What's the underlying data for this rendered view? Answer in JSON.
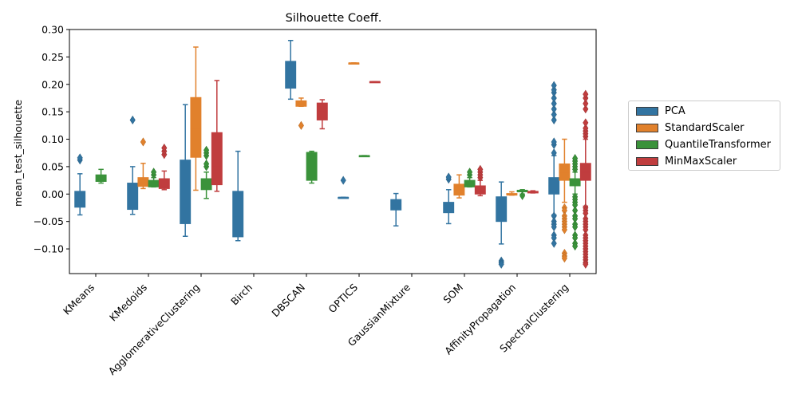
{
  "chart_data": {
    "type": "box",
    "title": "Silhouette Coeff.",
    "xlabel": "",
    "ylabel": "mean_test_silhouette",
    "ylim": [
      -0.145,
      0.3
    ],
    "yticks": [
      -0.1,
      -0.05,
      0.0,
      0.05,
      0.1,
      0.15,
      0.2,
      0.25,
      0.3
    ],
    "ytick_labels": [
      "−0.10",
      "−0.05",
      "0.00",
      "0.05",
      "0.10",
      "0.15",
      "0.20",
      "0.25",
      "0.30"
    ],
    "categories": [
      "KMeans",
      "KMedoids",
      "AgglomerativeClustering",
      "Birch",
      "DBSCAN",
      "OPTICS",
      "GaussianMixture",
      "SOM",
      "AffinityPropagation",
      "SpectralClustering"
    ],
    "legend_position": "right",
    "grid": false,
    "series": [
      {
        "name": "PCA",
        "color": "#3274a1",
        "boxes": [
          {
            "category": "KMeans",
            "whislo": -0.038,
            "q1": -0.024,
            "med": -0.01,
            "q3": 0.005,
            "whishi": 0.037,
            "fliers": [
              0.062,
              0.066
            ]
          },
          {
            "category": "KMedoids",
            "whislo": -0.037,
            "q1": -0.028,
            "med": 0.0,
            "q3": 0.02,
            "whishi": 0.05,
            "fliers": [
              0.135
            ]
          },
          {
            "category": "AgglomerativeClustering",
            "whislo": -0.077,
            "q1": -0.054,
            "med": 0.0,
            "q3": 0.062,
            "whishi": 0.163,
            "fliers": []
          },
          {
            "category": "Birch",
            "whislo": -0.085,
            "q1": -0.078,
            "med": -0.04,
            "q3": 0.005,
            "whishi": 0.078,
            "fliers": []
          },
          {
            "category": "DBSCAN",
            "whislo": 0.173,
            "q1": 0.193,
            "med": 0.21,
            "q3": 0.242,
            "whishi": 0.28,
            "fliers": []
          },
          {
            "category": "OPTICS",
            "whislo": -0.006,
            "q1": -0.006,
            "med": -0.006,
            "q3": -0.006,
            "whishi": -0.006,
            "fliers": [
              0.025
            ]
          },
          {
            "category": "GaussianMixture",
            "whislo": -0.058,
            "q1": -0.029,
            "med": -0.02,
            "q3": -0.01,
            "whishi": 0.001,
            "fliers": []
          },
          {
            "category": "SOM",
            "whislo": -0.054,
            "q1": -0.034,
            "med": -0.02,
            "q3": -0.015,
            "whishi": 0.008,
            "fliers": [
              0.027,
              0.031
            ]
          },
          {
            "category": "AffinityPropagation",
            "whislo": -0.091,
            "q1": -0.05,
            "med": -0.02,
            "q3": -0.005,
            "whishi": 0.022,
            "fliers": [
              -0.122,
              -0.125,
              -0.128
            ]
          },
          {
            "category": "SpectralClustering",
            "whislo": -0.038,
            "q1": 0.0,
            "med": 0.015,
            "q3": 0.03,
            "whishi": 0.07,
            "fliers": [
              0.075,
              0.09,
              0.095,
              0.135,
              0.145,
              0.155,
              0.165,
              0.175,
              0.185,
              0.19,
              0.198,
              -0.04,
              -0.05,
              -0.055,
              -0.06,
              -0.075,
              -0.08,
              -0.09
            ]
          }
        ]
      },
      {
        "name": "StandardScaler",
        "color": "#e1812c",
        "boxes": [
          {
            "category": "KMedoids",
            "whislo": 0.01,
            "q1": 0.014,
            "med": 0.02,
            "q3": 0.03,
            "whishi": 0.056,
            "fliers": [
              0.095
            ]
          },
          {
            "category": "AgglomerativeClustering",
            "whislo": 0.007,
            "q1": 0.067,
            "med": 0.12,
            "q3": 0.176,
            "whishi": 0.268,
            "fliers": []
          },
          {
            "category": "DBSCAN",
            "whislo": 0.16,
            "q1": 0.16,
            "med": 0.163,
            "q3": 0.17,
            "whishi": 0.175,
            "fliers": [
              0.125
            ]
          },
          {
            "category": "OPTICS",
            "whislo": 0.239,
            "q1": 0.239,
            "med": 0.239,
            "q3": 0.239,
            "whishi": 0.239,
            "fliers": []
          },
          {
            "category": "SOM",
            "whislo": -0.007,
            "q1": -0.002,
            "med": 0.008,
            "q3": 0.018,
            "whishi": 0.035,
            "fliers": []
          },
          {
            "category": "AffinityPropagation",
            "whislo": -0.002,
            "q1": -0.002,
            "med": -0.001,
            "q3": 0.001,
            "whishi": 0.004,
            "fliers": []
          },
          {
            "category": "SpectralClustering",
            "whislo": -0.015,
            "q1": 0.025,
            "med": 0.04,
            "q3": 0.055,
            "whishi": 0.1,
            "fliers": [
              -0.025,
              -0.03,
              -0.04,
              -0.045,
              -0.05,
              -0.055,
              -0.06,
              -0.065,
              -0.108,
              -0.113,
              -0.117
            ]
          }
        ]
      },
      {
        "name": "QuantileTransformer",
        "color": "#3a923a",
        "boxes": [
          {
            "category": "KMeans",
            "whislo": 0.02,
            "q1": 0.023,
            "med": 0.03,
            "q3": 0.035,
            "whishi": 0.045,
            "fliers": []
          },
          {
            "category": "KMedoids",
            "whislo": 0.013,
            "q1": 0.013,
            "med": 0.018,
            "q3": 0.025,
            "whishi": 0.03,
            "fliers": [
              0.035,
              0.04
            ]
          },
          {
            "category": "AgglomerativeClustering",
            "whislo": -0.008,
            "q1": 0.008,
            "med": 0.015,
            "q3": 0.028,
            "whishi": 0.04,
            "fliers": [
              0.05,
              0.055,
              0.07,
              0.075,
              0.08
            ]
          },
          {
            "category": "DBSCAN",
            "whislo": 0.02,
            "q1": 0.025,
            "med": 0.05,
            "q3": 0.076,
            "whishi": 0.078,
            "fliers": []
          },
          {
            "category": "OPTICS",
            "whislo": 0.07,
            "q1": 0.07,
            "med": 0.07,
            "q3": 0.07,
            "whishi": 0.07,
            "fliers": []
          },
          {
            "category": "SOM",
            "whislo": 0.013,
            "q1": 0.013,
            "med": 0.018,
            "q3": 0.025,
            "whishi": 0.03,
            "fliers": [
              0.035,
              0.04
            ]
          },
          {
            "category": "AffinityPropagation",
            "whislo": 0.0,
            "q1": 0.004,
            "med": 0.005,
            "q3": 0.007,
            "whishi": 0.008,
            "fliers": [
              -0.003
            ]
          },
          {
            "category": "SpectralClustering",
            "whislo": 0.0,
            "q1": 0.015,
            "med": 0.02,
            "q3": 0.028,
            "whishi": 0.04,
            "fliers": [
              0.045,
              0.05,
              0.055,
              0.06,
              0.065,
              -0.005,
              -0.01,
              -0.015,
              -0.02,
              -0.03,
              -0.04,
              -0.045,
              -0.055,
              -0.06,
              -0.075,
              -0.08,
              -0.09,
              -0.095
            ]
          }
        ]
      },
      {
        "name": "MinMaxScaler",
        "color": "#c03d3e",
        "boxes": [
          {
            "category": "KMedoids",
            "whislo": 0.008,
            "q1": 0.01,
            "med": 0.015,
            "q3": 0.028,
            "whishi": 0.042,
            "fliers": [
              0.072,
              0.078,
              0.084
            ]
          },
          {
            "category": "AgglomerativeClustering",
            "whislo": 0.005,
            "q1": 0.017,
            "med": 0.05,
            "q3": 0.112,
            "whishi": 0.207,
            "fliers": []
          },
          {
            "category": "DBSCAN",
            "whislo": 0.119,
            "q1": 0.135,
            "med": 0.15,
            "q3": 0.166,
            "whishi": 0.172,
            "fliers": []
          },
          {
            "category": "OPTICS",
            "whislo": 0.205,
            "q1": 0.205,
            "med": 0.205,
            "q3": 0.205,
            "whishi": 0.205,
            "fliers": []
          },
          {
            "category": "SOM",
            "whislo": -0.003,
            "q1": 0.0,
            "med": 0.005,
            "q3": 0.015,
            "whishi": 0.025,
            "fliers": [
              0.03,
              0.035,
              0.04,
              0.045
            ]
          },
          {
            "category": "AffinityPropagation",
            "whislo": 0.002,
            "q1": 0.002,
            "med": 0.003,
            "q3": 0.005,
            "whishi": 0.006,
            "fliers": []
          },
          {
            "category": "SpectralClustering",
            "whislo": -0.022,
            "q1": 0.025,
            "med": 0.04,
            "q3": 0.056,
            "whishi": 0.1,
            "fliers": [
              0.105,
              0.11,
              0.115,
              0.12,
              0.13,
              0.155,
              0.165,
              0.175,
              0.182,
              -0.025,
              -0.03,
              -0.035,
              -0.045,
              -0.05,
              -0.055,
              -0.06,
              -0.065,
              -0.075,
              -0.08,
              -0.085,
              -0.09,
              -0.095,
              -0.1,
              -0.105,
              -0.11,
              -0.115,
              -0.12,
              -0.125,
              -0.128
            ]
          }
        ]
      }
    ]
  }
}
